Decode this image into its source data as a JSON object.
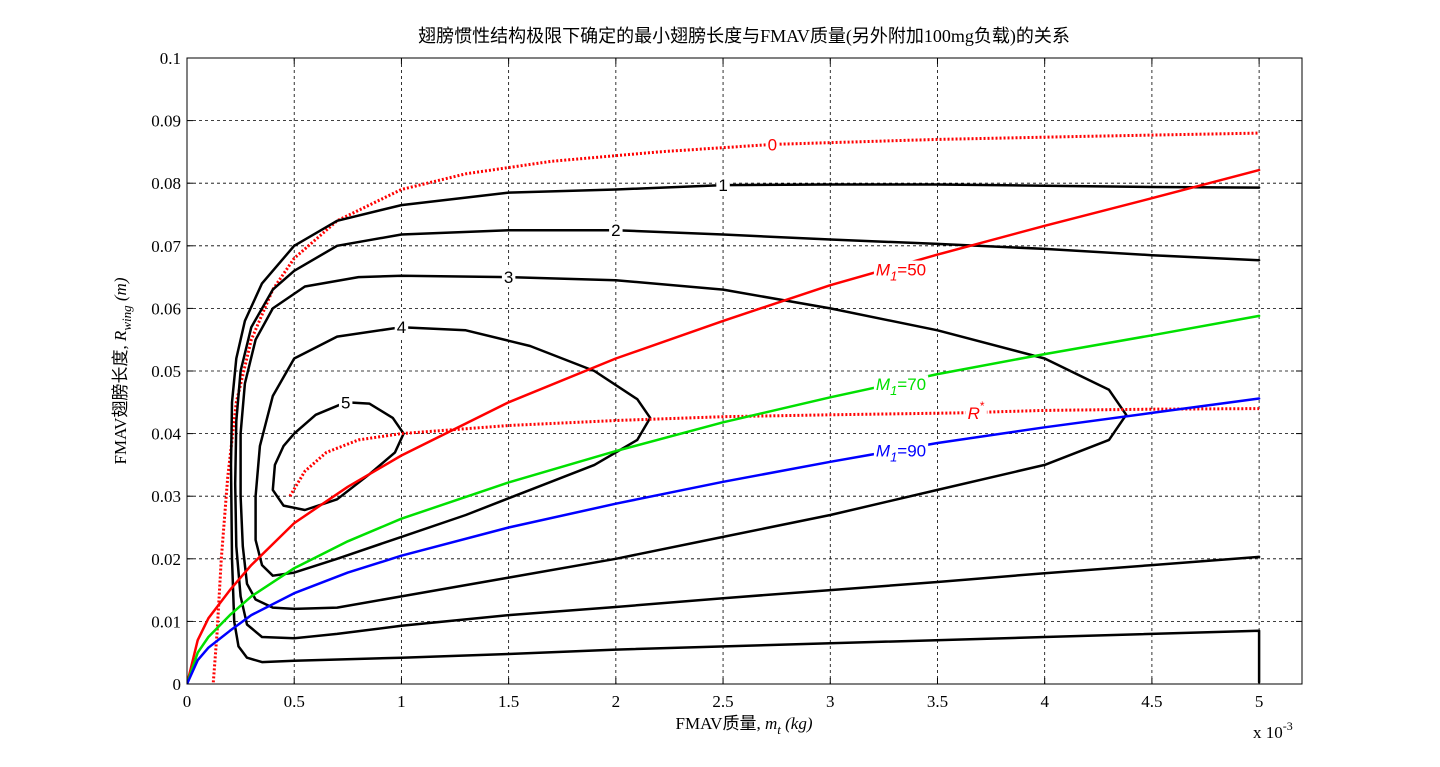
{
  "chart_data": {
    "type": "line",
    "title": "翅膀惯性结构极限下确定的最小翅膀长度与FMAV质量(另外附加100mg负载)的关系",
    "xlabel": "FMAV质量, m_t (kg)",
    "xlabel_prefix": "FMAV质量, ",
    "xlabel_var": "m",
    "xlabel_sub": "t",
    "xlabel_unit": " (kg)",
    "ylabel_prefix": "FMAV翅膀长度, ",
    "ylabel_var": "R",
    "ylabel_sub": "wing",
    "ylabel_unit": " (m)",
    "x_multiplier": "x 10",
    "x_exponent": "-3",
    "xlim": [
      0,
      5.2
    ],
    "ylim": [
      0,
      0.1
    ],
    "x_unit_scale": 0.001,
    "x_ticks": [
      0,
      0.5,
      1,
      1.5,
      2,
      2.5,
      3,
      3.5,
      4,
      4.5,
      5
    ],
    "x_tick_labels": [
      "0",
      "0.5",
      "1",
      "1.5",
      "2",
      "2.5",
      "3",
      "3.5",
      "4",
      "4.5",
      "5"
    ],
    "y_ticks": [
      0,
      0.01,
      0.02,
      0.03,
      0.04,
      0.05,
      0.06,
      0.07,
      0.08,
      0.09,
      0.1
    ],
    "y_tick_labels": [
      "0",
      "0.01",
      "0.02",
      "0.03",
      "0.04",
      "0.05",
      "0.06",
      "0.07",
      "0.08",
      "0.09",
      "0.1"
    ],
    "grid": true,
    "series": [
      {
        "label": "0",
        "color": "#ff0000",
        "style": "dotted",
        "label_point": [
          2.73,
          0.0862
        ],
        "points": [
          [
            0.12,
            -0.001
          ],
          [
            0.14,
            0.008
          ],
          [
            0.16,
            0.02
          ],
          [
            0.19,
            0.033
          ],
          [
            0.23,
            0.045
          ],
          [
            0.3,
            0.055
          ],
          [
            0.4,
            0.063
          ],
          [
            0.5,
            0.068
          ],
          [
            0.7,
            0.074
          ],
          [
            1.0,
            0.079
          ],
          [
            1.3,
            0.0815
          ],
          [
            1.7,
            0.0835
          ],
          [
            2.2,
            0.085
          ],
          [
            2.73,
            0.0862
          ],
          [
            3.5,
            0.087
          ],
          [
            4.2,
            0.0875
          ],
          [
            5.0,
            0.088
          ]
        ]
      },
      {
        "label": "1",
        "color": "#000000",
        "style": "solid",
        "label_point": [
          2.5,
          0.0797
        ],
        "points": [
          [
            5.0,
            0.0003
          ],
          [
            5.0,
            0.0085
          ],
          [
            4.0,
            0.0075
          ],
          [
            3.0,
            0.0065
          ],
          [
            2.0,
            0.0055
          ],
          [
            1.5,
            0.0048
          ],
          [
            1.0,
            0.0042
          ],
          [
            0.5,
            0.0037
          ],
          [
            0.35,
            0.0035
          ],
          [
            0.28,
            0.0042
          ],
          [
            0.24,
            0.006
          ],
          [
            0.22,
            0.01
          ],
          [
            0.21,
            0.02
          ],
          [
            0.205,
            0.035
          ],
          [
            0.21,
            0.045
          ],
          [
            0.23,
            0.052
          ],
          [
            0.27,
            0.058
          ],
          [
            0.35,
            0.064
          ],
          [
            0.5,
            0.07
          ],
          [
            0.7,
            0.074
          ],
          [
            1.0,
            0.0765
          ],
          [
            1.5,
            0.0785
          ],
          [
            2.0,
            0.079
          ],
          [
            2.5,
            0.0797
          ],
          [
            3.0,
            0.0798
          ],
          [
            3.5,
            0.0798
          ],
          [
            4.0,
            0.0796
          ],
          [
            4.5,
            0.0794
          ],
          [
            5.0,
            0.0793
          ]
        ]
      },
      {
        "label": "2",
        "color": "#000000",
        "style": "solid",
        "label_point": [
          2.0,
          0.0725
        ],
        "points": [
          [
            5.0,
            0.0203
          ],
          [
            4.5,
            0.019
          ],
          [
            4.0,
            0.0177
          ],
          [
            3.5,
            0.0163
          ],
          [
            3.0,
            0.015
          ],
          [
            2.5,
            0.0137
          ],
          [
            2.0,
            0.0123
          ],
          [
            1.5,
            0.011
          ],
          [
            1.0,
            0.0093
          ],
          [
            0.7,
            0.008
          ],
          [
            0.5,
            0.0073
          ],
          [
            0.35,
            0.0075
          ],
          [
            0.28,
            0.0095
          ],
          [
            0.25,
            0.014
          ],
          [
            0.23,
            0.022
          ],
          [
            0.225,
            0.032
          ],
          [
            0.23,
            0.042
          ],
          [
            0.25,
            0.05
          ],
          [
            0.3,
            0.057
          ],
          [
            0.4,
            0.063
          ],
          [
            0.5,
            0.066
          ],
          [
            0.7,
            0.07
          ],
          [
            1.0,
            0.0718
          ],
          [
            1.5,
            0.0725
          ],
          [
            2.0,
            0.0725
          ],
          [
            2.5,
            0.0718
          ],
          [
            3.0,
            0.071
          ],
          [
            3.5,
            0.0703
          ],
          [
            4.0,
            0.0695
          ],
          [
            4.5,
            0.0685
          ],
          [
            5.0,
            0.0677
          ]
        ]
      },
      {
        "label": "3",
        "color": "#000000",
        "style": "solid",
        "label_point": [
          1.5,
          0.065
        ],
        "points": [
          [
            0.25,
            0.04
          ],
          [
            0.27,
            0.048
          ],
          [
            0.32,
            0.055
          ],
          [
            0.4,
            0.06
          ],
          [
            0.55,
            0.0635
          ],
          [
            0.8,
            0.065
          ],
          [
            1.0,
            0.0652
          ],
          [
            1.5,
            0.065
          ],
          [
            2.0,
            0.0645
          ],
          [
            2.5,
            0.063
          ],
          [
            3.0,
            0.06
          ],
          [
            3.5,
            0.0565
          ],
          [
            4.0,
            0.052
          ],
          [
            4.3,
            0.047
          ],
          [
            4.38,
            0.043
          ],
          [
            4.3,
            0.039
          ],
          [
            4.0,
            0.035
          ],
          [
            3.5,
            0.031
          ],
          [
            3.0,
            0.027
          ],
          [
            2.5,
            0.0235
          ],
          [
            2.0,
            0.02
          ],
          [
            1.5,
            0.017
          ],
          [
            1.0,
            0.014
          ],
          [
            0.7,
            0.0122
          ],
          [
            0.5,
            0.012
          ],
          [
            0.4,
            0.0122
          ],
          [
            0.32,
            0.0135
          ],
          [
            0.28,
            0.016
          ],
          [
            0.26,
            0.022
          ],
          [
            0.25,
            0.03
          ],
          [
            0.25,
            0.04
          ]
        ]
      },
      {
        "label": "4",
        "color": "#000000",
        "style": "solid",
        "label_point": [
          1.0,
          0.057
        ],
        "points": [
          [
            0.32,
            0.03
          ],
          [
            0.34,
            0.038
          ],
          [
            0.4,
            0.046
          ],
          [
            0.5,
            0.052
          ],
          [
            0.7,
            0.0555
          ],
          [
            1.0,
            0.057
          ],
          [
            1.3,
            0.0565
          ],
          [
            1.6,
            0.054
          ],
          [
            1.9,
            0.05
          ],
          [
            2.1,
            0.0455
          ],
          [
            2.16,
            0.0425
          ],
          [
            2.1,
            0.039
          ],
          [
            1.9,
            0.035
          ],
          [
            1.6,
            0.031
          ],
          [
            1.3,
            0.027
          ],
          [
            1.0,
            0.0235
          ],
          [
            0.7,
            0.02
          ],
          [
            0.5,
            0.0178
          ],
          [
            0.4,
            0.0173
          ],
          [
            0.35,
            0.019
          ],
          [
            0.32,
            0.023
          ],
          [
            0.32,
            0.03
          ]
        ]
      },
      {
        "label": "5",
        "color": "#000000",
        "style": "solid",
        "label_point": [
          0.74,
          0.045
        ],
        "points": [
          [
            0.5,
            0.04
          ],
          [
            0.6,
            0.043
          ],
          [
            0.74,
            0.045
          ],
          [
            0.85,
            0.0448
          ],
          [
            0.96,
            0.0425
          ],
          [
            1.01,
            0.04
          ],
          [
            0.97,
            0.037
          ],
          [
            0.85,
            0.0335
          ],
          [
            0.7,
            0.0295
          ],
          [
            0.55,
            0.0278
          ],
          [
            0.45,
            0.0285
          ],
          [
            0.4,
            0.031
          ],
          [
            0.41,
            0.035
          ],
          [
            0.45,
            0.038
          ],
          [
            0.5,
            0.04
          ]
        ]
      },
      {
        "label": "R",
        "label_sup": "*",
        "color": "#ff0000",
        "style": "dotted",
        "label_point": [
          3.68,
          0.0433
        ],
        "points": [
          [
            0.48,
            0.03
          ],
          [
            0.55,
            0.034
          ],
          [
            0.65,
            0.037
          ],
          [
            0.8,
            0.039
          ],
          [
            1.0,
            0.04
          ],
          [
            1.5,
            0.0413
          ],
          [
            2.0,
            0.0421
          ],
          [
            2.5,
            0.0427
          ],
          [
            3.0,
            0.043
          ],
          [
            3.6,
            0.0433
          ],
          [
            4.0,
            0.0437
          ],
          [
            4.5,
            0.0439
          ],
          [
            5.0,
            0.044
          ]
        ]
      },
      {
        "label": "M",
        "label_sub": "1",
        "label_suffix": "=50",
        "color": "#ff0000",
        "style": "solid",
        "label_point": [
          3.33,
          0.0662
        ],
        "points": [
          [
            0.0,
            0.0
          ],
          [
            0.05,
            0.007
          ],
          [
            0.1,
            0.0105
          ],
          [
            0.2,
            0.015
          ],
          [
            0.3,
            0.019
          ],
          [
            0.5,
            0.0257
          ],
          [
            0.75,
            0.0315
          ],
          [
            1.0,
            0.0365
          ],
          [
            1.5,
            0.045
          ],
          [
            2.0,
            0.052
          ],
          [
            2.5,
            0.058
          ],
          [
            3.0,
            0.0637
          ],
          [
            3.5,
            0.0686
          ],
          [
            4.0,
            0.0732
          ],
          [
            4.5,
            0.0776
          ],
          [
            5.0,
            0.0821
          ]
        ]
      },
      {
        "label": "M",
        "label_sub": "1",
        "label_suffix": "=70",
        "color": "#00e000",
        "style": "solid",
        "label_point": [
          3.33,
          0.0479
        ],
        "points": [
          [
            0.0,
            0.0
          ],
          [
            0.05,
            0.005
          ],
          [
            0.1,
            0.0075
          ],
          [
            0.2,
            0.011
          ],
          [
            0.3,
            0.014
          ],
          [
            0.5,
            0.0185
          ],
          [
            0.75,
            0.0228
          ],
          [
            1.0,
            0.0264
          ],
          [
            1.5,
            0.0322
          ],
          [
            2.0,
            0.0372
          ],
          [
            2.5,
            0.0418
          ],
          [
            3.0,
            0.0458
          ],
          [
            3.5,
            0.0495
          ],
          [
            4.0,
            0.0527
          ],
          [
            4.5,
            0.0557
          ],
          [
            5.0,
            0.0588
          ]
        ]
      },
      {
        "label": "M",
        "label_sub": "1",
        "label_suffix": "=90",
        "color": "#0000ff",
        "style": "solid",
        "label_point": [
          3.33,
          0.0373
        ],
        "points": [
          [
            0.0,
            0.0
          ],
          [
            0.05,
            0.0038
          ],
          [
            0.1,
            0.0058
          ],
          [
            0.2,
            0.0085
          ],
          [
            0.3,
            0.011
          ],
          [
            0.5,
            0.0145
          ],
          [
            0.75,
            0.0178
          ],
          [
            1.0,
            0.0205
          ],
          [
            1.5,
            0.025
          ],
          [
            2.0,
            0.0288
          ],
          [
            2.5,
            0.0323
          ],
          [
            3.0,
            0.0355
          ],
          [
            3.5,
            0.0385
          ],
          [
            4.0,
            0.041
          ],
          [
            4.5,
            0.0433
          ],
          [
            5.0,
            0.0456
          ]
        ]
      }
    ]
  }
}
